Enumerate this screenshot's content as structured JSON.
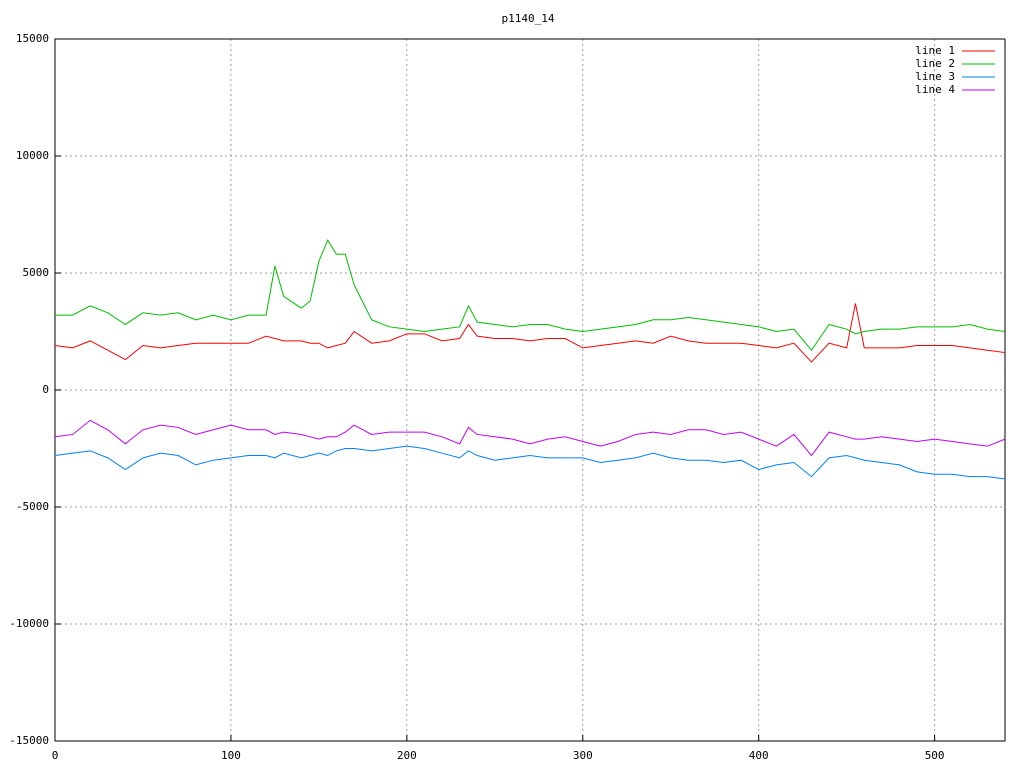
{
  "chart_data": {
    "type": "line",
    "title": "p1140_14",
    "x": [
      0,
      10,
      20,
      30,
      40,
      50,
      60,
      70,
      80,
      90,
      100,
      110,
      120,
      125,
      130,
      140,
      145,
      150,
      155,
      160,
      165,
      170,
      180,
      190,
      200,
      210,
      220,
      230,
      235,
      240,
      250,
      260,
      270,
      280,
      290,
      300,
      310,
      320,
      330,
      340,
      350,
      360,
      370,
      380,
      390,
      400,
      410,
      420,
      430,
      440,
      450,
      455,
      460,
      470,
      480,
      490,
      500,
      510,
      520,
      530,
      540
    ],
    "series": [
      {
        "name": "line 1",
        "color": "#ff0000",
        "values": [
          1900,
          1800,
          2100,
          1700,
          1300,
          1900,
          1800,
          1900,
          2000,
          2000,
          2000,
          2000,
          2300,
          2200,
          2100,
          2100,
          2000,
          2000,
          1800,
          1900,
          2000,
          2500,
          2000,
          2100,
          2400,
          2400,
          2100,
          2200,
          2800,
          2300,
          2200,
          2200,
          2100,
          2200,
          2200,
          1800,
          1900,
          2000,
          2100,
          2000,
          2300,
          2100,
          2000,
          2000,
          2000,
          1900,
          1800,
          2000,
          1200,
          2000,
          1800,
          3700,
          1800,
          1800,
          1800,
          1900,
          1900,
          1900,
          1800,
          1700,
          1600
        ]
      },
      {
        "name": "line 2",
        "color": "#00c000",
        "values": [
          3200,
          3200,
          3600,
          3300,
          2800,
          3300,
          3200,
          3300,
          3000,
          3200,
          3000,
          3200,
          3200,
          5300,
          4000,
          3500,
          3800,
          5500,
          6400,
          5800,
          5800,
          4500,
          3000,
          2700,
          2600,
          2500,
          2600,
          2700,
          3600,
          2900,
          2800,
          2700,
          2800,
          2800,
          2600,
          2500,
          2600,
          2700,
          2800,
          3000,
          3000,
          3100,
          3000,
          2900,
          2800,
          2700,
          2500,
          2600,
          1700,
          2800,
          2600,
          2400,
          2500,
          2600,
          2600,
          2700,
          2700,
          2700,
          2800,
          2600,
          2500
        ]
      },
      {
        "name": "line 3",
        "color": "#0080ff",
        "values": [
          -2800,
          -2700,
          -2600,
          -2900,
          -3400,
          -2900,
          -2700,
          -2800,
          -3200,
          -3000,
          -2900,
          -2800,
          -2800,
          -2900,
          -2700,
          -2900,
          -2800,
          -2700,
          -2800,
          -2600,
          -2500,
          -2500,
          -2600,
          -2500,
          -2400,
          -2500,
          -2700,
          -2900,
          -2600,
          -2800,
          -3000,
          -2900,
          -2800,
          -2900,
          -2900,
          -2900,
          -3100,
          -3000,
          -2900,
          -2700,
          -2900,
          -3000,
          -3000,
          -3100,
          -3000,
          -3400,
          -3200,
          -3100,
          -3700,
          -2900,
          -2800,
          -2900,
          -3000,
          -3100,
          -3200,
          -3500,
          -3600,
          -3600,
          -3700,
          -3700,
          -3800
        ]
      },
      {
        "name": "line 4",
        "color": "#c000ff",
        "values": [
          -2000,
          -1900,
          -1300,
          -1700,
          -2300,
          -1700,
          -1500,
          -1600,
          -1900,
          -1700,
          -1500,
          -1700,
          -1700,
          -1900,
          -1800,
          -1900,
          -2000,
          -2100,
          -2000,
          -2000,
          -1800,
          -1500,
          -1900,
          -1800,
          -1800,
          -1800,
          -2000,
          -2300,
          -1600,
          -1900,
          -2000,
          -2100,
          -2300,
          -2100,
          -2000,
          -2200,
          -2400,
          -2200,
          -1900,
          -1800,
          -1900,
          -1700,
          -1700,
          -1900,
          -1800,
          -2100,
          -2400,
          -1900,
          -2800,
          -1800,
          -2000,
          -2100,
          -2100,
          -2000,
          -2100,
          -2200,
          -2100,
          -2200,
          -2300,
          -2400,
          -2100
        ]
      }
    ],
    "xlim": [
      0,
      540
    ],
    "ylim": [
      -15000,
      15000
    ],
    "xticks": [
      0,
      100,
      200,
      300,
      400,
      500
    ],
    "yticks": [
      -15000,
      -10000,
      -5000,
      0,
      5000,
      10000,
      15000
    ],
    "grid": true,
    "legend": "top-right"
  }
}
